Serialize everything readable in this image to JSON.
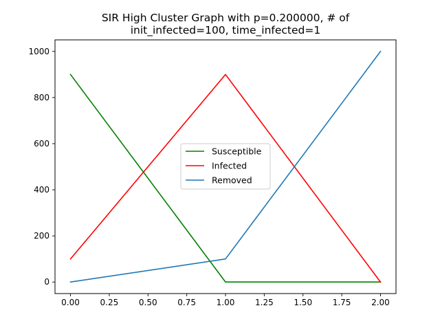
{
  "chart_data": {
    "type": "line",
    "title_lines": [
      "SIR High Cluster Graph with p=0.200000, # of",
      "init_infected=100, time_infected=1"
    ],
    "xlabel": "",
    "ylabel": "",
    "x": [
      0,
      1,
      2
    ],
    "xlim": [
      -0.1,
      2.1
    ],
    "ylim": [
      -50,
      1050
    ],
    "xticks": [
      "0.00",
      "0.25",
      "0.50",
      "0.75",
      "1.00",
      "1.25",
      "1.50",
      "1.75",
      "2.00"
    ],
    "yticks": [
      "0",
      "200",
      "400",
      "600",
      "800",
      "1000"
    ],
    "grid": false,
    "legend_position": "center",
    "series": [
      {
        "name": "Susceptible",
        "color": "#008000",
        "values": [
          900,
          0,
          0
        ]
      },
      {
        "name": "Infected",
        "color": "#ff0000",
        "values": [
          100,
          900,
          0
        ]
      },
      {
        "name": "Removed",
        "color": "#1f77b4",
        "values": [
          0,
          100,
          1000
        ]
      }
    ]
  }
}
